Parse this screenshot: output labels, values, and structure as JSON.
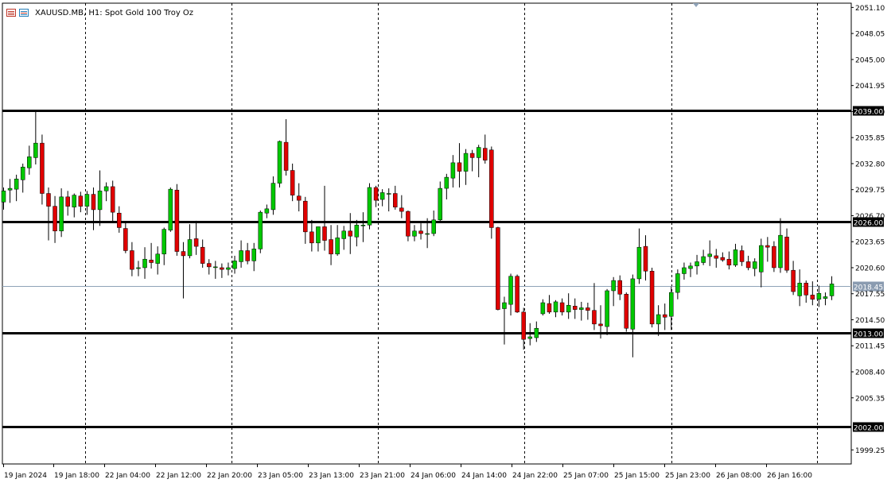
{
  "header": {
    "symbol_line": "XAUUSD.MB, H1:  Spot Gold 100 Troy Oz"
  },
  "chart_data": {
    "type": "candlestick",
    "symbol": "XAUUSD.MB",
    "timeframe": "H1",
    "description": "Spot Gold 100 Troy Oz",
    "ylim": [
      1997.6,
      2051.6
    ],
    "y_ticks": [
      "2051.10",
      "2048.05",
      "2045.00",
      "2041.95",
      "2038.90",
      "2035.85",
      "2032.80",
      "2029.75",
      "2026.70",
      "2023.65",
      "2020.60",
      "2017.55",
      "2014.50",
      "2011.45",
      "2008.40",
      "2005.35",
      "1999.25"
    ],
    "x_labels": [
      "19 Jan 2024",
      "19 Jan 18:00",
      "22 Jan 04:00",
      "22 Jan 12:00",
      "22 Jan 20:00",
      "23 Jan 05:00",
      "23 Jan 13:00",
      "23 Jan 21:00",
      "24 Jan 06:00",
      "24 Jan 14:00",
      "24 Jan 22:00",
      "25 Jan 07:00",
      "25 Jan 15:00",
      "25 Jan 23:00",
      "26 Jan 08:00",
      "26 Jan 16:00"
    ],
    "levels": [
      {
        "value": 2039.0,
        "label": "2039.00"
      },
      {
        "value": 2026.0,
        "label": "2026.00"
      },
      {
        "value": 2013.0,
        "label": "2013.00"
      },
      {
        "value": 2002.0,
        "label": "2002.00"
      }
    ],
    "current_price": {
      "value": 2018.45,
      "label": "2018.45"
    },
    "grid": "vertical-dashed",
    "colors": {
      "bull": "#00c800",
      "bear": "#e00000",
      "level": "#000000",
      "current": "#8fa3b8",
      "grid": "#000000"
    },
    "candles": [
      [
        2028.3,
        2030.0,
        2027.4,
        2029.6
      ],
      [
        2029.7,
        2031.0,
        2028.2,
        2029.9
      ],
      [
        2029.8,
        2031.5,
        2028.4,
        2031.0
      ],
      [
        2030.9,
        2032.8,
        2029.4,
        2032.4
      ],
      [
        2032.3,
        2034.9,
        2031.5,
        2033.6
      ],
      [
        2033.5,
        2039.0,
        2032.7,
        2035.2
      ],
      [
        2035.2,
        2036.2,
        2028.0,
        2029.3
      ],
      [
        2029.3,
        2030.0,
        2023.8,
        2027.8
      ],
      [
        2027.8,
        2029.0,
        2023.5,
        2024.9
      ],
      [
        2024.9,
        2029.9,
        2024.2,
        2028.9
      ],
      [
        2028.9,
        2029.6,
        2026.7,
        2027.8
      ],
      [
        2027.7,
        2029.3,
        2026.5,
        2029.1
      ],
      [
        2029.0,
        2029.5,
        2027.1,
        2027.8
      ],
      [
        2027.8,
        2029.6,
        2026.8,
        2029.2
      ],
      [
        2029.2,
        2030.0,
        2025.0,
        2027.4
      ],
      [
        2027.4,
        2032.0,
        2025.5,
        2029.6
      ],
      [
        2029.6,
        2030.6,
        2028.4,
        2030.1
      ],
      [
        2030.1,
        2030.8,
        2026.0,
        2027.1
      ],
      [
        2027.0,
        2027.8,
        2024.7,
        2025.3
      ],
      [
        2025.2,
        2025.9,
        2022.3,
        2022.6
      ],
      [
        2022.6,
        2023.6,
        2019.6,
        2020.4
      ],
      [
        2020.5,
        2021.4,
        2019.6,
        2020.6
      ],
      [
        2020.6,
        2023.0,
        2019.3,
        2021.6
      ],
      [
        2021.5,
        2023.5,
        2020.5,
        2021.2
      ],
      [
        2021.1,
        2023.1,
        2019.8,
        2022.2
      ],
      [
        2022.2,
        2025.3,
        2020.9,
        2025.1
      ],
      [
        2025.0,
        2030.0,
        2024.8,
        2029.8
      ],
      [
        2029.7,
        2030.4,
        2022.0,
        2022.5
      ],
      [
        2022.5,
        2023.6,
        2017.0,
        2022.0
      ],
      [
        2022.0,
        2025.7,
        2021.7,
        2023.9
      ],
      [
        2024.0,
        2026.1,
        2022.1,
        2023.1
      ],
      [
        2023.0,
        2023.9,
        2020.6,
        2021.1
      ],
      [
        2021.1,
        2021.6,
        2019.8,
        2020.7
      ],
      [
        2020.7,
        2021.4,
        2019.3,
        2020.7
      ],
      [
        2020.6,
        2021.1,
        2019.4,
        2020.4
      ],
      [
        2020.4,
        2021.2,
        2019.7,
        2020.6
      ],
      [
        2020.5,
        2022.0,
        2019.9,
        2021.4
      ],
      [
        2021.3,
        2023.8,
        2020.6,
        2022.6
      ],
      [
        2022.6,
        2023.5,
        2021.0,
        2021.4
      ],
      [
        2021.4,
        2023.5,
        2020.2,
        2022.8
      ],
      [
        2022.8,
        2027.3,
        2022.3,
        2027.1
      ],
      [
        2027.0,
        2028.0,
        2026.4,
        2027.5
      ],
      [
        2027.4,
        2031.3,
        2026.8,
        2030.5
      ],
      [
        2030.5,
        2035.5,
        2030.0,
        2035.4
      ],
      [
        2035.3,
        2038.0,
        2031.4,
        2032.0
      ],
      [
        2032.0,
        2032.8,
        2028.4,
        2029.1
      ],
      [
        2029.0,
        2030.5,
        2027.2,
        2028.5
      ],
      [
        2028.4,
        2028.9,
        2023.4,
        2024.8
      ],
      [
        2024.8,
        2026.2,
        2022.5,
        2023.5
      ],
      [
        2023.5,
        2025.4,
        2022.5,
        2025.4
      ],
      [
        2025.4,
        2030.2,
        2022.6,
        2023.8
      ],
      [
        2023.9,
        2025.6,
        2020.9,
        2022.2
      ],
      [
        2022.2,
        2025.6,
        2022.0,
        2024.1
      ],
      [
        2024.0,
        2025.5,
        2022.7,
        2024.9
      ],
      [
        2024.9,
        2027.0,
        2022.2,
        2024.3
      ],
      [
        2024.2,
        2026.2,
        2023.1,
        2025.6
      ],
      [
        2025.5,
        2027.1,
        2023.6,
        2025.6
      ],
      [
        2025.6,
        2030.5,
        2025.1,
        2030.0
      ],
      [
        2030.0,
        2030.2,
        2027.7,
        2028.5
      ],
      [
        2028.6,
        2029.8,
        2027.8,
        2029.4
      ],
      [
        2029.3,
        2029.9,
        2027.2,
        2029.3
      ],
      [
        2029.3,
        2030.2,
        2027.4,
        2027.7
      ],
      [
        2027.6,
        2029.1,
        2026.4,
        2027.2
      ],
      [
        2027.2,
        2027.3,
        2023.7,
        2024.3
      ],
      [
        2024.3,
        2025.6,
        2023.7,
        2024.9
      ],
      [
        2024.9,
        2025.8,
        2023.9,
        2024.6
      ],
      [
        2024.6,
        2026.4,
        2022.9,
        2024.6
      ],
      [
        2024.6,
        2027.3,
        2024.3,
        2026.2
      ],
      [
        2026.2,
        2030.7,
        2026.0,
        2029.9
      ],
      [
        2029.9,
        2031.6,
        2028.6,
        2031.2
      ],
      [
        2031.1,
        2033.8,
        2030.0,
        2032.9
      ],
      [
        2032.9,
        2035.2,
        2030.0,
        2031.9
      ],
      [
        2031.9,
        2034.5,
        2030.3,
        2034.0
      ],
      [
        2034.0,
        2034.4,
        2031.9,
        2033.5
      ],
      [
        2033.5,
        2035.0,
        2031.2,
        2034.7
      ],
      [
        2034.6,
        2036.2,
        2032.8,
        2033.2
      ],
      [
        2034.4,
        2034.8,
        2024.0,
        2025.3
      ],
      [
        2025.3,
        2025.4,
        2015.6,
        2015.7
      ],
      [
        2015.8,
        2017.2,
        2011.6,
        2016.5
      ],
      [
        2016.3,
        2019.9,
        2015.0,
        2019.6
      ],
      [
        2019.6,
        2019.8,
        2015.3,
        2015.4
      ],
      [
        2015.4,
        2015.9,
        2011.0,
        2012.2
      ],
      [
        2012.3,
        2014.1,
        2011.5,
        2012.5
      ],
      [
        2012.4,
        2014.3,
        2011.9,
        2013.5
      ],
      [
        2015.2,
        2016.9,
        2015.0,
        2016.5
      ],
      [
        2016.4,
        2017.4,
        2015.2,
        2015.4
      ],
      [
        2015.4,
        2016.8,
        2014.8,
        2016.6
      ],
      [
        2016.5,
        2017.0,
        2015.0,
        2015.4
      ],
      [
        2015.4,
        2017.6,
        2014.6,
        2016.2
      ],
      [
        2016.1,
        2017.0,
        2014.6,
        2015.7
      ],
      [
        2015.7,
        2016.6,
        2014.4,
        2015.9
      ],
      [
        2015.9,
        2016.5,
        2014.5,
        2015.6
      ],
      [
        2015.6,
        2018.8,
        2013.3,
        2014.0
      ],
      [
        2014.0,
        2016.2,
        2012.3,
        2013.8
      ],
      [
        2013.7,
        2018.1,
        2012.7,
        2017.9
      ],
      [
        2017.9,
        2019.5,
        2016.1,
        2019.1
      ],
      [
        2019.1,
        2019.7,
        2016.8,
        2017.5
      ],
      [
        2017.5,
        2017.7,
        2013.1,
        2013.5
      ],
      [
        2013.4,
        2019.8,
        2010.1,
        2019.3
      ],
      [
        2019.3,
        2025.2,
        2018.7,
        2023.0
      ],
      [
        2023.1,
        2024.4,
        2019.1,
        2020.2
      ],
      [
        2020.2,
        2020.6,
        2013.6,
        2014.0
      ],
      [
        2014.0,
        2016.2,
        2012.6,
        2015.1
      ],
      [
        2015.1,
        2016.4,
        2013.3,
        2014.8
      ],
      [
        2014.9,
        2018.4,
        2013.3,
        2017.7
      ],
      [
        2017.7,
        2020.4,
        2016.9,
        2019.9
      ],
      [
        2019.9,
        2021.2,
        2019.2,
        2020.6
      ],
      [
        2020.5,
        2021.2,
        2019.5,
        2020.8
      ],
      [
        2020.8,
        2022.1,
        2019.8,
        2021.3
      ],
      [
        2021.2,
        2022.7,
        2020.9,
        2021.9
      ],
      [
        2021.9,
        2023.8,
        2020.8,
        2022.2
      ],
      [
        2022.0,
        2022.8,
        2020.6,
        2021.7
      ],
      [
        2021.8,
        2022.4,
        2021.3,
        2021.5
      ],
      [
        2021.6,
        2022.5,
        2020.4,
        2020.9
      ],
      [
        2020.9,
        2023.4,
        2020.7,
        2022.7
      ],
      [
        2022.6,
        2023.2,
        2020.8,
        2021.3
      ],
      [
        2021.3,
        2022.0,
        2020.3,
        2020.6
      ],
      [
        2020.5,
        2021.7,
        2019.6,
        2021.3
      ],
      [
        2020.1,
        2024.0,
        2018.3,
        2023.2
      ],
      [
        2023.2,
        2024.2,
        2021.3,
        2023.0
      ],
      [
        2023.1,
        2023.7,
        2020.1,
        2020.6
      ],
      [
        2020.6,
        2026.4,
        2020.0,
        2024.4
      ],
      [
        2024.2,
        2025.2,
        2020.0,
        2020.3
      ],
      [
        2020.3,
        2021.4,
        2017.4,
        2017.8
      ],
      [
        2017.3,
        2020.4,
        2016.1,
        2018.8
      ],
      [
        2018.8,
        2019.1,
        2016.5,
        2017.4
      ],
      [
        2017.4,
        2019.0,
        2016.2,
        2016.9
      ],
      [
        2016.9,
        2018.5,
        2016.0,
        2017.6
      ],
      [
        2017.0,
        2017.7,
        2016.2,
        2017.2
      ],
      [
        2017.3,
        2019.6,
        2016.8,
        2018.7
      ]
    ]
  }
}
